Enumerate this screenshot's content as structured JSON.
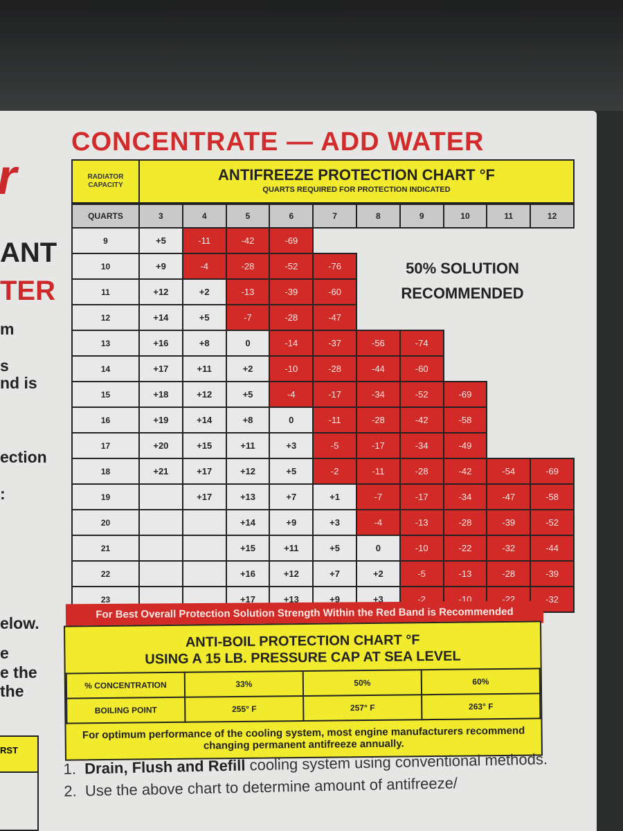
{
  "left_fragments": {
    "logo": "r",
    "line1": "ANT",
    "line2": "TER",
    "t1": "m",
    "t2": "s",
    "t3": "nd is",
    "t4": "ection",
    "t5": ":",
    "t6": "elow.",
    "t7": "e",
    "t8": "e the",
    "t9": "the",
    "table_header": "RST"
  },
  "headline": "CONCENTRATE — ADD WATER",
  "freeze_chart": {
    "radiator_capacity": "RADIATOR CAPACITY",
    "title": "ANTIFREEZE PROTECTION CHART °F",
    "subtitle": "QUARTS REQUIRED FOR PROTECTION INDICATED",
    "quarts_label": "QUARTS",
    "columns": [
      "3",
      "4",
      "5",
      "6",
      "7",
      "8",
      "9",
      "10",
      "11",
      "12"
    ],
    "rows": [
      {
        "capacity": "9",
        "values": [
          "+5",
          "-11",
          "-42",
          "-69",
          null,
          null,
          null,
          null,
          null,
          null
        ]
      },
      {
        "capacity": "10",
        "values": [
          "+9",
          "-4",
          "-28",
          "-52",
          "-76",
          null,
          null,
          null,
          null,
          null
        ]
      },
      {
        "capacity": "11",
        "values": [
          "+12",
          "+2",
          "-13",
          "-39",
          "-60",
          null,
          null,
          null,
          null,
          null
        ]
      },
      {
        "capacity": "12",
        "values": [
          "+14",
          "+5",
          "-7",
          "-28",
          "-47",
          null,
          null,
          null,
          null,
          null
        ]
      },
      {
        "capacity": "13",
        "values": [
          "+16",
          "+8",
          "0",
          "-14",
          "-37",
          "-56",
          "-74",
          null,
          null,
          null
        ]
      },
      {
        "capacity": "14",
        "values": [
          "+17",
          "+11",
          "+2",
          "-10",
          "-28",
          "-44",
          "-60",
          null,
          null,
          null
        ]
      },
      {
        "capacity": "15",
        "values": [
          "+18",
          "+12",
          "+5",
          "-4",
          "-17",
          "-34",
          "-52",
          "-69",
          null,
          null
        ]
      },
      {
        "capacity": "16",
        "values": [
          "+19",
          "+14",
          "+8",
          "0",
          "-11",
          "-28",
          "-42",
          "-58",
          null,
          null
        ]
      },
      {
        "capacity": "17",
        "values": [
          "+20",
          "+15",
          "+11",
          "+3",
          "-5",
          "-17",
          "-34",
          "-49",
          null,
          null
        ]
      },
      {
        "capacity": "18",
        "values": [
          "+21",
          "+17",
          "+12",
          "+5",
          "-2",
          "-11",
          "-28",
          "-42",
          "-54",
          "-69"
        ]
      },
      {
        "capacity": "19",
        "values": [
          "",
          "+17",
          "+13",
          "+7",
          "+1",
          "-7",
          "-17",
          "-34",
          "-47",
          "-58"
        ]
      },
      {
        "capacity": "20",
        "values": [
          "",
          "",
          "+14",
          "+9",
          "+3",
          "-4",
          "-13",
          "-28",
          "-39",
          "-52"
        ]
      },
      {
        "capacity": "21",
        "values": [
          "",
          "",
          "+15",
          "+11",
          "+5",
          "0",
          "-10",
          "-22",
          "-32",
          "-44"
        ]
      },
      {
        "capacity": "22",
        "values": [
          "",
          "",
          "+16",
          "+12",
          "+7",
          "+2",
          "-5",
          "-13",
          "-28",
          "-39"
        ]
      },
      {
        "capacity": "23",
        "values": [
          "",
          "",
          "+17",
          "+13",
          "+9",
          "+3",
          "-2",
          "-10",
          "-22",
          "-32"
        ]
      }
    ],
    "recommendation": "50% SOLUTION RECOMMENDED",
    "red_band_note": "For Best Overall Protection Solution Strength Within the Red Band is Recommended",
    "colors": {
      "red": "#d22a26",
      "yellow": "#f2ea2c"
    }
  },
  "boil_chart": {
    "title_line1": "ANTI-BOIL PROTECTION CHART °F",
    "title_line2": "USING A 15 LB. PRESSURE CAP AT SEA LEVEL",
    "concentration_label": "% CONCENTRATION",
    "concentrations": [
      "33%",
      "50%",
      "60%"
    ],
    "boiling_label": "BOILING POINT",
    "boiling_points": [
      "255° F",
      "257° F",
      "263° F"
    ],
    "note": "For optimum performance of the cooling system, most engine manufacturers recommend changing permanent antifreeze annually."
  },
  "steps": [
    {
      "num": "1.",
      "bold": "Drain, Flush and Refill",
      "text": " cooling system using conventional methods."
    },
    {
      "num": "2.",
      "bold": "",
      "text": "Use the above chart to determine amount of antifreeze/"
    }
  ]
}
